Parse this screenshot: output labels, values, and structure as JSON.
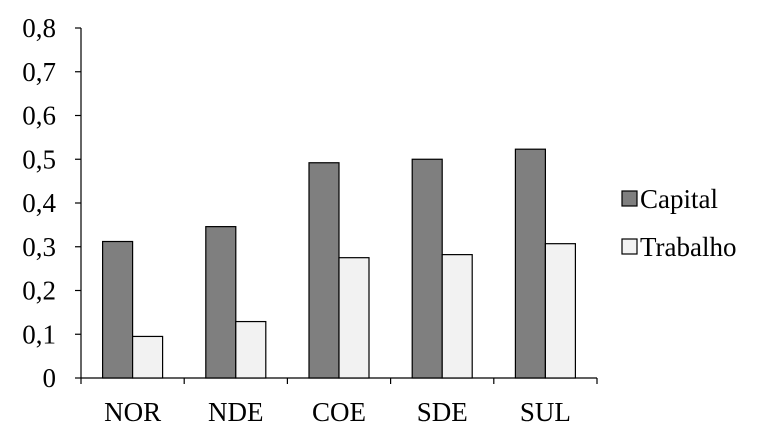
{
  "chart_data": {
    "type": "bar",
    "categories": [
      "NOR",
      "NDE",
      "COE",
      "SDE",
      "SUL"
    ],
    "series": [
      {
        "name": "Capital",
        "values": [
          0.312,
          0.346,
          0.492,
          0.5,
          0.523
        ],
        "color": "#7f7f7f"
      },
      {
        "name": "Trabalho",
        "values": [
          0.095,
          0.129,
          0.275,
          0.282,
          0.307
        ],
        "color": "#f2f2f2"
      }
    ],
    "ylim": [
      0,
      0.8
    ],
    "yticks": [
      "0",
      "0,1",
      "0,2",
      "0,3",
      "0,4",
      "0,5",
      "0,6",
      "0,7",
      "0,8"
    ],
    "title": "",
    "xlabel": "",
    "ylabel": "",
    "legend_position": "right",
    "grid": false
  }
}
